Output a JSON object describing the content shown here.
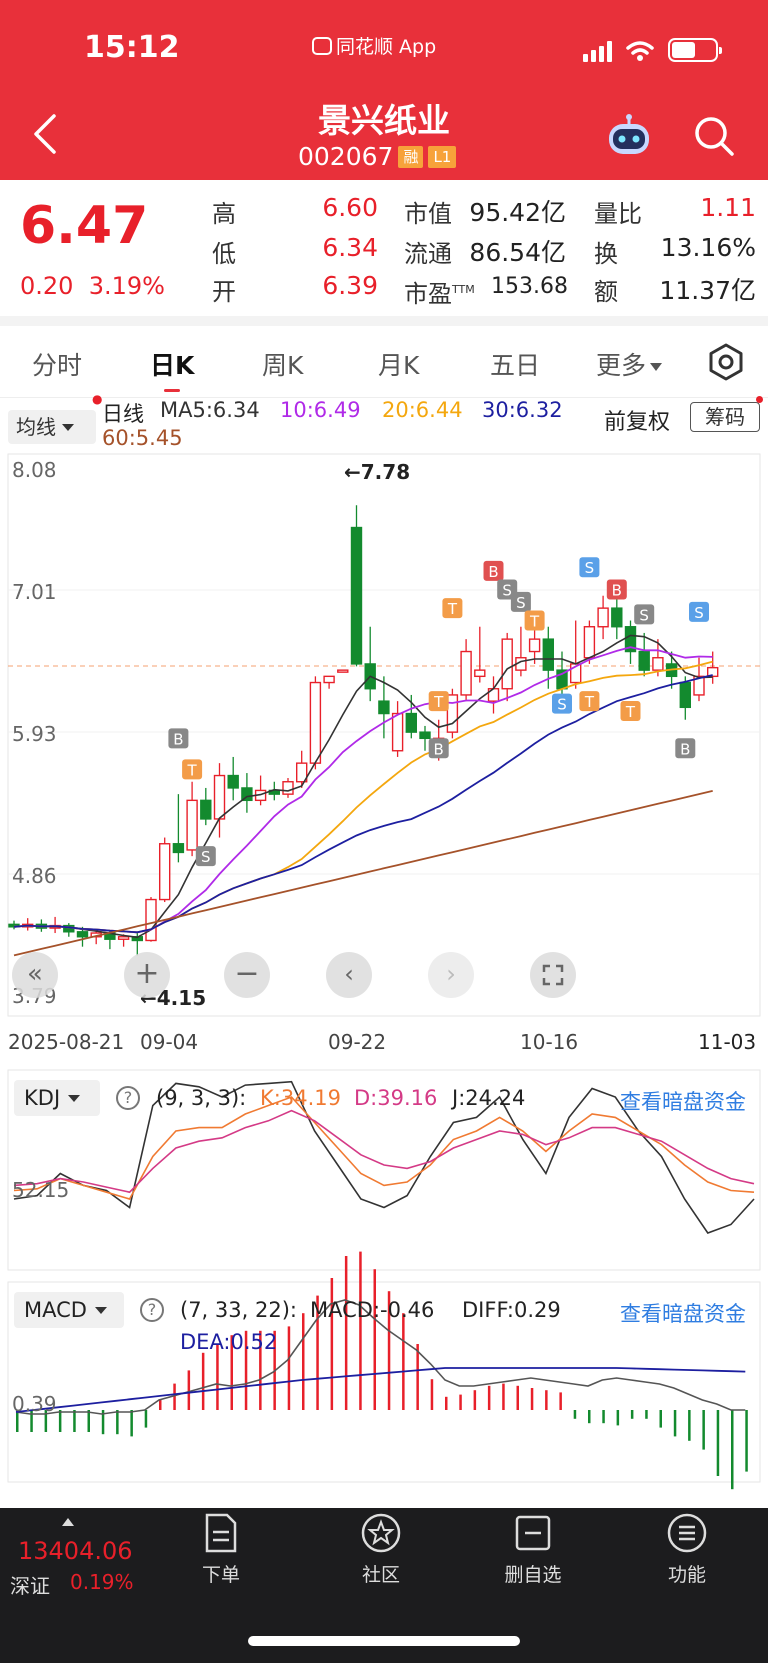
{
  "status": {
    "time": "15:12",
    "app": "同花顺 App"
  },
  "header": {
    "name": "景兴纸业",
    "code": "002067",
    "tag1": "融",
    "tag2": "L1"
  },
  "quote": {
    "price": "6.47",
    "change": "0.20",
    "change_pct": "3.19%",
    "high_label": "高",
    "high": "6.60",
    "low_label": "低",
    "low": "6.34",
    "open_label": "开",
    "open": "6.39",
    "mktcap_label": "市值",
    "mktcap": "95.42亿",
    "float_label": "流通",
    "float": "86.54亿",
    "pe_label": "市盈",
    "pe_sup": "TTM",
    "pe": "153.68",
    "vr_label": "量比",
    "vr": "1.11",
    "turn_label": "换",
    "turn": "13.16%",
    "amt_label": "额",
    "amt": "11.37亿"
  },
  "tabs": [
    "分时",
    "日K",
    "周K",
    "月K",
    "五日",
    "更多"
  ],
  "active_tab": "日K",
  "ma": {
    "selector": "均线",
    "period": "日线",
    "ma5": "MA5:6.34",
    "ma10": "10:6.49",
    "ma20": "20:6.44",
    "ma30": "30:6.32",
    "ma60": "60:5.45",
    "adjust": "前复权",
    "chips": "筹码"
  },
  "colors": {
    "up": "#e8202a",
    "down": "#138a2e",
    "ma5": "#333333",
    "ma10": "#b02ae8",
    "ma20": "#f4a70e",
    "ma30": "#1d1fa0",
    "ma60": "#a5522a"
  },
  "kline": {
    "y_ticks": [
      "8.08",
      "7.01",
      "5.93",
      "4.86",
      "3.79"
    ],
    "x_ticks": [
      "2025-08-21",
      "09-04",
      "09-22",
      "10-16",
      "11-03"
    ],
    "max_label": "←7.78",
    "min_label": "←4.15"
  },
  "chart_data": [
    {
      "type": "line",
      "title": "",
      "x": [
        "2025-08-21",
        "09-04",
        "09-22",
        "10-16",
        "11-03"
      ],
      "ylim": [
        3.79,
        8.08
      ],
      "series": [
        {
          "name": "MA5",
          "values": [
            4.38,
            4.28,
            6.48,
            6.3,
            6.34
          ]
        },
        {
          "name": "MA10",
          "values": [
            4.37,
            4.3,
            6.0,
            6.35,
            6.49
          ]
        },
        {
          "name": "MA20",
          "values": [
            4.4,
            4.32,
            5.3,
            6.15,
            6.44
          ]
        },
        {
          "name": "MA30",
          "values": [
            4.36,
            4.33,
            5.0,
            5.8,
            6.32
          ]
        },
        {
          "name": "MA60",
          "values": [
            4.1,
            4.2,
            4.6,
            5.05,
            5.45
          ]
        }
      ],
      "high": 7.78,
      "low": 4.15
    },
    {
      "type": "line",
      "title": "KDJ",
      "params": "(9, 3, 3):",
      "series": [
        {
          "name": "K",
          "label": "K:34.19",
          "last": 34.19
        },
        {
          "name": "D",
          "label": "D:39.16",
          "last": 39.16
        },
        {
          "name": "J",
          "label": "J:24.24",
          "last": 24.24
        }
      ],
      "y_tick": "52.15"
    },
    {
      "type": "bar",
      "title": "MACD",
      "params": "(7, 33, 22):",
      "series": [
        {
          "name": "MACD",
          "label": "MACD:-0.46",
          "last": -0.46
        },
        {
          "name": "DIFF",
          "label": "DIFF:0.29",
          "last": 0.29
        },
        {
          "name": "DEA",
          "label": "DEA:0.52",
          "last": 0.52
        }
      ],
      "y_tick": "0.39"
    }
  ],
  "kdj": {
    "selector": "KDJ",
    "params": "(9, 3, 3):",
    "k": "K:34.19",
    "d": "D:39.16",
    "j": "J:24.24",
    "link": "查看暗盘资金",
    "tick": "52.15"
  },
  "macd": {
    "selector": "MACD",
    "params": "(7, 33, 22):",
    "macd": "MACD:-0.46",
    "diff": "DIFF:0.29",
    "dea": "DEA:0.52",
    "link": "查看暗盘资金",
    "tick": "0.39"
  },
  "bottom": {
    "index_value": "13404.06",
    "index_name": "深证",
    "index_pct": "0.19%",
    "nav": [
      "下单",
      "社区",
      "删自选",
      "功能"
    ]
  }
}
